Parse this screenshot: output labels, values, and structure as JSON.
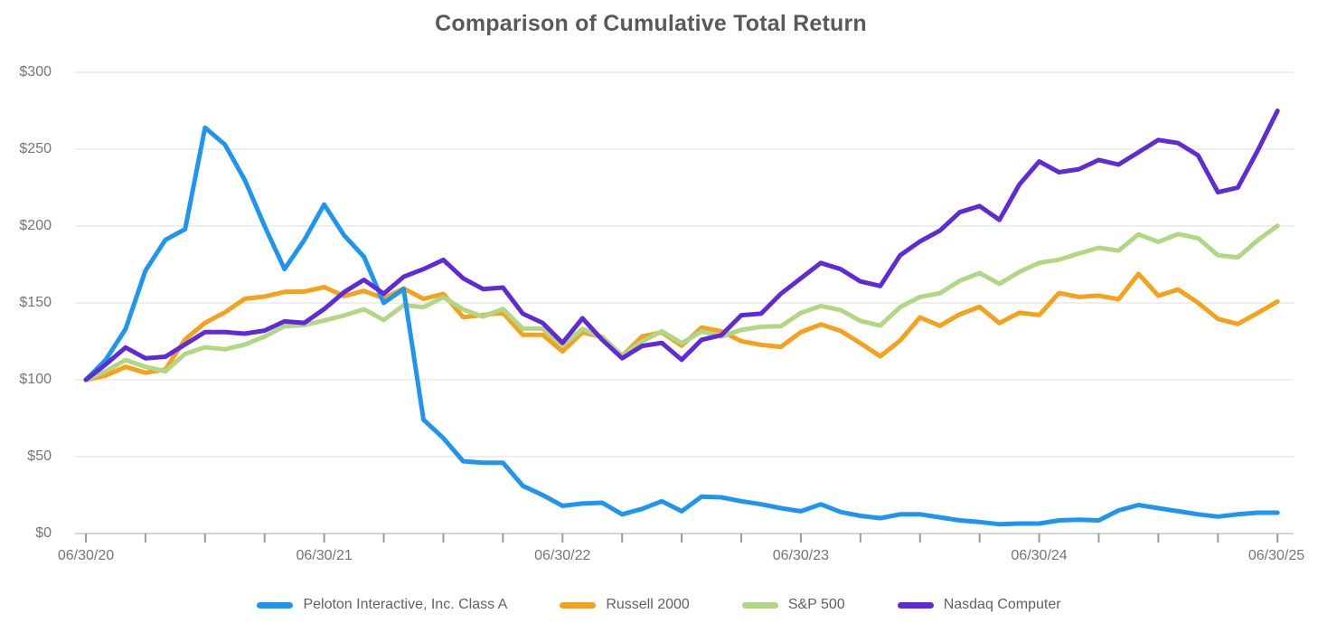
{
  "chart_data": {
    "type": "line",
    "title": "Comparison of Cumulative Total Return",
    "x_axis": {
      "tick_labels": [
        "06/30/20",
        "06/30/21",
        "06/30/22",
        "06/30/23",
        "06/30/24",
        "06/30/25"
      ],
      "tick_label_months": [
        0,
        12,
        24,
        36,
        48,
        60
      ],
      "minor_tick_every_months": 3,
      "total_months": 60
    },
    "y_axis": {
      "tick_labels": [
        "$0",
        "$50",
        "$100",
        "$150",
        "$200",
        "$250",
        "$300"
      ],
      "tick_values": [
        0,
        50,
        100,
        150,
        200,
        250,
        300
      ],
      "ylim": [
        0,
        300
      ],
      "grid": "horizontal"
    },
    "legend_position": "bottom",
    "colors": {
      "gridline": "#e9e9e9",
      "axis_line": "#c7c7c7",
      "tick_mark": "#9b9b9b",
      "title_text": "#58595b",
      "axis_text": "#757575",
      "legend_text": "#616161",
      "background": "#ffffff"
    },
    "series": [
      {
        "name": "Peloton Interactive, Inc. Class A",
        "color": "#2095f0",
        "values": [
          100,
          113,
          133,
          171,
          191,
          198,
          264,
          253,
          230,
          200,
          172,
          191,
          214,
          194,
          180,
          150,
          159,
          74,
          62,
          47,
          46,
          46,
          31,
          25,
          18,
          19.5,
          20,
          12.5,
          16,
          21,
          14.5,
          24,
          23.5,
          21,
          19,
          16.5,
          14.5,
          19,
          14,
          11.5,
          10,
          12.5,
          12.5,
          10.5,
          8.5,
          7.5,
          6,
          6.5,
          6.5,
          8.5,
          9,
          8.5,
          15,
          18.5,
          16.5,
          14.5,
          12.5,
          11,
          12.5,
          13.5,
          13.5
        ]
      },
      {
        "name": "Russell 2000",
        "color": "#f5a11c",
        "values": [
          100,
          102.7,
          108.4,
          104.6,
          106.7,
          126.3,
          137,
          143.9,
          152.7,
          154.1,
          157.2,
          157.4,
          160.3,
          154.5,
          157.8,
          152.9,
          159.4,
          152.6,
          155.8,
          140.7,
          142.1,
          143.6,
          129.3,
          129.3,
          118.5,
          130.8,
          127.9,
          115.5,
          128.1,
          130.9,
          122.2,
          134,
          131.6,
          125.1,
          122.7,
          121.4,
          131,
          136,
          131.8,
          123.8,
          115.3,
          125.5,
          140.6,
          135.1,
          142.6,
          147.4,
          136.9,
          143.6,
          142.1,
          156.4,
          153.9,
          154.7,
          152.4,
          168.9,
          154.7,
          158.7,
          150.1,
          139.6,
          136.3,
          143.4,
          150.9
        ]
      },
      {
        "name": "S&P 500",
        "color": "#b1d784",
        "values": [
          100,
          105.5,
          112.9,
          108.5,
          105.5,
          116.8,
          121.2,
          119.8,
          122.9,
          128.1,
          134.9,
          135.6,
          138.6,
          141.8,
          145.9,
          138.9,
          148.5,
          147.3,
          153.7,
          145.7,
          141.1,
          146.1,
          133.3,
          133.3,
          122.1,
          133.2,
          127.6,
          115.7,
          124.9,
          131.6,
          123.8,
          131.5,
          128.1,
          132.5,
          134.5,
          134.8,
          143.5,
          148,
          145.4,
          138.3,
          135.3,
          147.3,
          153.9,
          156.3,
          164.4,
          169.5,
          162.4,
          170.2,
          176.1,
          178.1,
          182.2,
          185.9,
          184,
          194.6,
          189.7,
          194.8,
          192.1,
          181,
          179.6,
          190.7,
          200.2
        ]
      },
      {
        "name": "Nasdaq Computer",
        "color": "#5e2bd6",
        "values": [
          100,
          110,
          121,
          114,
          115,
          123,
          131,
          131,
          130,
          132,
          138,
          137,
          146,
          157,
          165,
          156,
          167,
          172,
          178,
          166,
          159,
          160,
          143,
          137,
          124,
          140,
          126,
          114,
          122,
          124,
          113,
          126,
          129,
          142,
          143,
          156,
          166,
          176,
          172,
          164,
          161,
          181,
          190,
          197,
          209,
          213,
          204,
          227,
          242,
          235,
          237,
          243,
          240,
          248,
          256,
          254,
          246,
          222,
          225,
          249,
          275
        ]
      }
    ]
  }
}
